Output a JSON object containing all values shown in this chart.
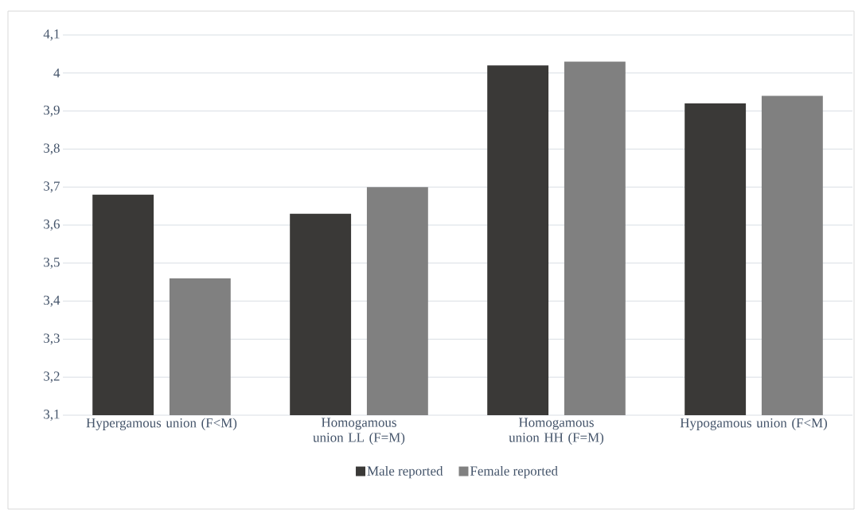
{
  "chart_data": {
    "type": "bar",
    "categories": [
      "Hypergamous union (F<M)",
      "Homogamous union LL (F=M)",
      "Homogamous union HH (F=M)",
      "Hypogamous union (F<M)"
    ],
    "series": [
      {
        "name": "Male reported",
        "color": "#3a3937",
        "values": [
          3.68,
          3.63,
          4.02,
          3.92
        ]
      },
      {
        "name": "Female reported",
        "color": "#808080",
        "values": [
          3.46,
          3.7,
          4.03,
          3.94
        ]
      }
    ],
    "ylim": [
      3.1,
      4.1
    ],
    "yticks": [
      {
        "value": 3.1,
        "label": "3,1"
      },
      {
        "value": 3.2,
        "label": "3,2"
      },
      {
        "value": 3.3,
        "label": "3,3"
      },
      {
        "value": 3.4,
        "label": "3,4"
      },
      {
        "value": 3.5,
        "label": "3,5"
      },
      {
        "value": 3.6,
        "label": "3,6"
      },
      {
        "value": 3.7,
        "label": "3,7"
      },
      {
        "value": 3.8,
        "label": "3,8"
      },
      {
        "value": 3.9,
        "label": "3,9"
      },
      4,
      {
        "value": 4.1,
        "label": "4,1"
      }
    ],
    "grid": "y",
    "legend": "bottom"
  }
}
